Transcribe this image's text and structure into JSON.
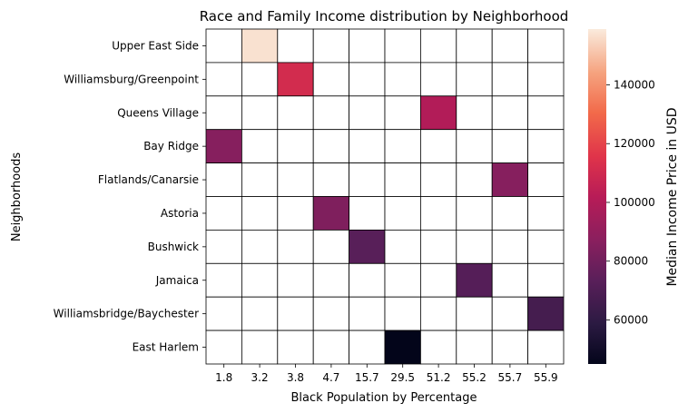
{
  "chart_data": {
    "type": "heatmap",
    "title": "Race and Family Income distribution by Neighborhood",
    "xlabel": "Black Population by Percentage",
    "ylabel": "Neighborhoods",
    "x_categories": [
      "1.8",
      "3.2",
      "3.8",
      "4.7",
      "15.7",
      "29.5",
      "51.2",
      "55.2",
      "55.7",
      "55.9"
    ],
    "y_categories": [
      "Upper East Side",
      "Williamsburg/Greenpoint",
      "Queens Village",
      "Bay Ridge",
      "Flatlands/Canarsie",
      "Astoria",
      "Bushwick",
      "Jamaica",
      "Williamsbridge/Baychester",
      "East Harlem"
    ],
    "cells": [
      {
        "neighborhood": "Upper East Side",
        "black_pct": "3.2",
        "value": 157000
      },
      {
        "neighborhood": "Williamsburg/Greenpoint",
        "black_pct": "3.8",
        "value": 111000
      },
      {
        "neighborhood": "Queens Village",
        "black_pct": "51.2",
        "value": 100000
      },
      {
        "neighborhood": "Bay Ridge",
        "black_pct": "1.8",
        "value": 86000
      },
      {
        "neighborhood": "Flatlands/Canarsie",
        "black_pct": "55.7",
        "value": 86000
      },
      {
        "neighborhood": "Astoria",
        "black_pct": "4.7",
        "value": 84000
      },
      {
        "neighborhood": "Bushwick",
        "black_pct": "15.7",
        "value": 73000
      },
      {
        "neighborhood": "Jamaica",
        "black_pct": "55.2",
        "value": 72000
      },
      {
        "neighborhood": "Williamsbridge/Baychester",
        "black_pct": "55.9",
        "value": 67000
      },
      {
        "neighborhood": "East Harlem",
        "black_pct": "29.5",
        "value": 45000
      }
    ],
    "colorbar": {
      "label": "Median Income Price in USD",
      "min": 45000,
      "max": 159000,
      "ticks": [
        60000,
        80000,
        100000,
        120000,
        140000
      ],
      "tick_labels": [
        "60000",
        "80000",
        "100000",
        "120000",
        "140000"
      ],
      "colormap": "rocket"
    },
    "grid": true
  }
}
